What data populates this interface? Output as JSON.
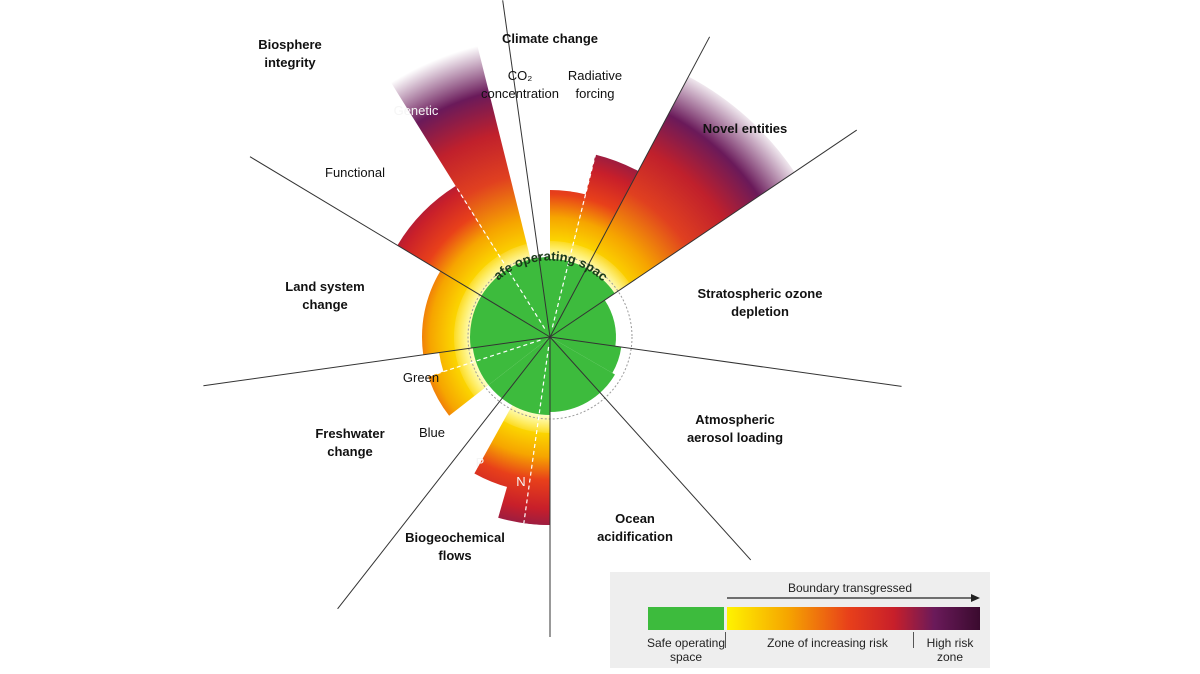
{
  "colors": {
    "safe": "#3dbb3d",
    "zone_stops": [
      "#fff300",
      "#f6a500",
      "#e8401a",
      "#c81f2a",
      "#6a1a5a",
      "#3a0a2e"
    ],
    "axis_line": "#333333",
    "legend_bg": "#eeeeee"
  },
  "center_label": "Safe operating space",
  "labels": {
    "climate_change": "Climate change",
    "co2": "CO₂",
    "co2_sub": "concentration",
    "radiative": "Radiative",
    "radiative_sub": "forcing",
    "novel_entities": "Novel entities",
    "ozone_1": "Stratospheric ozone",
    "ozone_2": "depletion",
    "aerosol_1": "Atmospheric",
    "aerosol_2": "aerosol loading",
    "ocean_1": "Ocean",
    "ocean_2": "acidification",
    "biogeo_1": "Biogeochemical",
    "biogeo_2": "flows",
    "p": "P",
    "n": "N",
    "freshwater_1": "Freshwater",
    "freshwater_2": "change",
    "green": "Green",
    "blue": "Blue",
    "land_1": "Land system",
    "land_2": "change",
    "functional": "Functional",
    "biosphere_1": "Biosphere",
    "biosphere_2": "integrity",
    "genetic": "Genetic"
  },
  "legend": {
    "arrow_label": "Boundary transgressed",
    "safe_1": "Safe operating",
    "safe_2": "space",
    "risk": "Zone of increasing risk",
    "high_1": "High risk",
    "high_2": "zone"
  },
  "boundaries": [
    {
      "name": "Climate change – CO₂ concentration",
      "status": "transgressed",
      "level": 0.55
    },
    {
      "name": "Climate change – Radiative forcing",
      "status": "high risk",
      "level": 0.95
    },
    {
      "name": "Novel entities",
      "status": "high risk",
      "level": 1.0
    },
    {
      "name": "Stratospheric ozone depletion",
      "status": "safe",
      "level": 0.85
    },
    {
      "name": "Atmospheric aerosol loading",
      "status": "safe",
      "level": 0.92
    },
    {
      "name": "Ocean acidification",
      "status": "safe",
      "level": 0.95
    },
    {
      "name": "Biogeochemical flows – N",
      "status": "high risk",
      "level": 0.95
    },
    {
      "name": "Biogeochemical flows – P",
      "status": "high risk",
      "level": 0.9
    },
    {
      "name": "Freshwater change – Blue",
      "status": "transgressed",
      "level": 0.6
    },
    {
      "name": "Freshwater change – Green",
      "status": "transgressed",
      "level": 0.5
    },
    {
      "name": "Land system change",
      "status": "transgressed",
      "level": 0.7
    },
    {
      "name": "Biosphere integrity – Functional",
      "status": "high risk",
      "level": 0.9
    },
    {
      "name": "Biosphere integrity – Genetic",
      "status": "high risk",
      "level": 1.0
    }
  ]
}
